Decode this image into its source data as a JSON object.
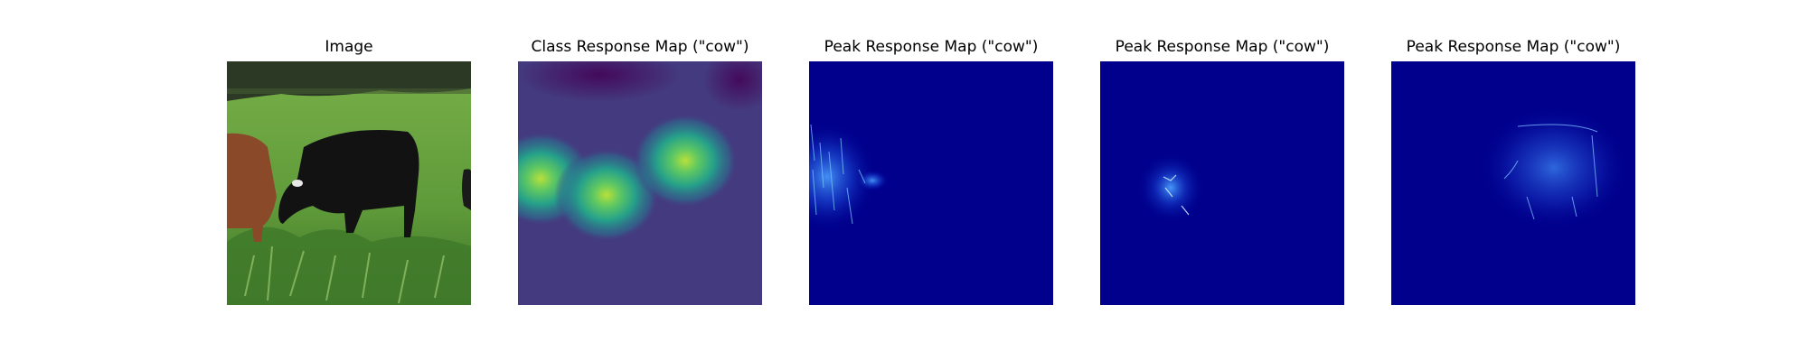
{
  "panels": [
    {
      "title": "Image"
    },
    {
      "title": "Class Response Map (\"cow\")"
    },
    {
      "title": "Peak Response Map (\"cow\")"
    },
    {
      "title": "Peak Response Map (\"cow\")"
    },
    {
      "title": "Peak Response Map (\"cow\")"
    }
  ],
  "colors": {
    "grass": "#5f9a3a",
    "trees": "#2c3a25",
    "brown_cow": "#8a4a2a",
    "black_cow": "#121212",
    "crm_background": "#443a7f",
    "crm_peak": "#b8e03a",
    "prm_background": "#00008c",
    "prm_highlight": "#4aa0ff"
  }
}
